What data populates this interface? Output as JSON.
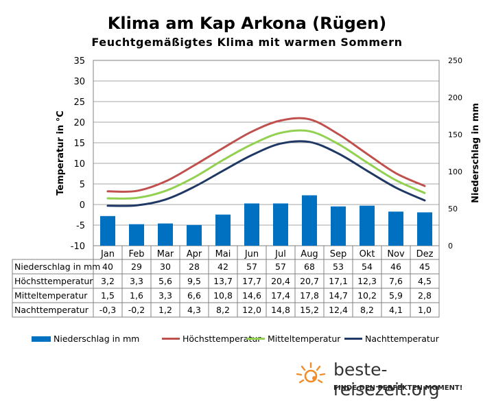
{
  "title": "Klima am Kap Arkona (Rügen)",
  "subtitle": "Feuchtgemäßigtes Klima mit warmen Sommern",
  "brand": {
    "name": "beste-reisezeit.org",
    "tagline": "FINDE DEN PERFEKTEN MOMENT!"
  },
  "colors": {
    "bar": "#0070c0",
    "high": "#c0504d",
    "mid": "#92d050",
    "low": "#1f3864"
  },
  "chart_data": {
    "type": "bar",
    "categories": [
      "Jan",
      "Feb",
      "Mar",
      "Apr",
      "Mai",
      "Jun",
      "Jul",
      "Aug",
      "Sep",
      "Okt",
      "Nov",
      "Dez"
    ],
    "y_left": {
      "label": "Temperatur in °C",
      "range": [
        -10,
        35
      ],
      "ticks": [
        "35",
        "30",
        "25",
        "20",
        "15",
        "10",
        "5",
        "0",
        "-5",
        "-10"
      ]
    },
    "y_right": {
      "label": "Niederschlag in mm",
      "range": [
        0,
        250
      ],
      "ticks": [
        "250",
        "200",
        "150",
        "100",
        "50",
        "0"
      ]
    },
    "grid": "horizontal",
    "legend_position": "bottom",
    "series": [
      {
        "name": "Niederschlag in mm",
        "type": "bar",
        "axis": "right",
        "values": [
          40,
          29,
          30,
          28,
          42,
          57,
          57,
          68,
          53,
          54,
          46,
          45
        ],
        "labels": [
          "40",
          "29",
          "30",
          "28",
          "42",
          "57",
          "57",
          "68",
          "53",
          "54",
          "46",
          "45"
        ]
      },
      {
        "name": "Höchsttemperatur",
        "type": "line",
        "axis": "left",
        "values": [
          3.2,
          3.3,
          5.6,
          9.5,
          13.7,
          17.7,
          20.4,
          20.7,
          17.1,
          12.3,
          7.6,
          4.5
        ],
        "labels": [
          "3,2",
          "3,3",
          "5,6",
          "9,5",
          "13,7",
          "17,7",
          "20,4",
          "20,7",
          "17,1",
          "12,3",
          "7,6",
          "4,5"
        ]
      },
      {
        "name": "Mitteltemperatur",
        "type": "line",
        "axis": "left",
        "values": [
          1.5,
          1.6,
          3.3,
          6.6,
          10.8,
          14.6,
          17.4,
          17.8,
          14.7,
          10.2,
          5.9,
          2.8
        ],
        "labels": [
          "1,5",
          "1,6",
          "3,3",
          "6,6",
          "10,8",
          "14,6",
          "17,4",
          "17,8",
          "14,7",
          "10,2",
          "5,9",
          "2,8"
        ]
      },
      {
        "name": "Nachttemperatur",
        "type": "line",
        "axis": "left",
        "values": [
          -0.3,
          -0.2,
          1.2,
          4.3,
          8.2,
          12.0,
          14.8,
          15.2,
          12.4,
          8.2,
          4.1,
          1.0
        ],
        "labels": [
          "-0,3",
          "-0,2",
          "1,2",
          "4,3",
          "8,2",
          "12,0",
          "14,8",
          "15,2",
          "12,4",
          "8,2",
          "4,1",
          "1,0"
        ]
      }
    ]
  }
}
